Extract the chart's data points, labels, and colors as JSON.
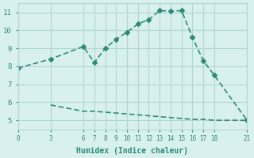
{
  "xlabel": "Humidex (Indice chaleur)",
  "line1_x": [
    0,
    3,
    6,
    7,
    8,
    9,
    10,
    11,
    12,
    13,
    14,
    15,
    16,
    17,
    18,
    21
  ],
  "line1_y": [
    7.9,
    8.4,
    9.1,
    8.2,
    9.0,
    9.5,
    9.9,
    10.35,
    10.6,
    11.1,
    11.05,
    11.1,
    9.6,
    8.3,
    7.5,
    5.0
  ],
  "line2_x": [
    3,
    6,
    7,
    8,
    9,
    10,
    11,
    12,
    13,
    14,
    15,
    16,
    17,
    18,
    21
  ],
  "line2_y": [
    5.85,
    5.5,
    5.5,
    5.45,
    5.4,
    5.35,
    5.3,
    5.25,
    5.2,
    5.15,
    5.1,
    5.05,
    5.05,
    5.0,
    5.0
  ],
  "color": "#2e8b7a",
  "bg_color": "#d8f0ee",
  "grid_color": "#b0d8d4",
  "xlim": [
    0,
    21
  ],
  "ylim": [
    4.5,
    11.5
  ],
  "xticks": [
    0,
    3,
    6,
    7,
    8,
    9,
    10,
    11,
    12,
    13,
    14,
    15,
    16,
    17,
    18,
    21
  ],
  "yticks": [
    5,
    6,
    7,
    8,
    9,
    10,
    11
  ],
  "marker": "D",
  "markersize": 3,
  "linewidth": 1.2
}
